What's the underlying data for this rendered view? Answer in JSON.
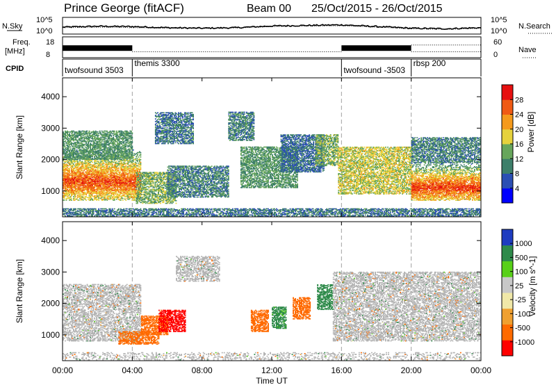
{
  "header": {
    "station": "Prince George (fitACF)",
    "beam": "Beam 00",
    "dates": "25/Oct/2015 - 26/Oct/2015"
  },
  "strips": {
    "nsky_label": "N.Sky",
    "nsky_ticks": [
      "10^5",
      "10^0"
    ],
    "nsearch_ticks": [
      "10^5",
      "10^0"
    ],
    "nsearch_label": "N.Search",
    "freq_label": [
      "Freq.",
      "[MHz]"
    ],
    "freq_ticks": [
      "18",
      "8"
    ],
    "nave_ticks": [
      "60",
      "0"
    ],
    "nave_label": "Nave",
    "cpid_label": "CPID",
    "cpid_programs": [
      {
        "name": "twofsound 3503",
        "start_hour": 0
      },
      {
        "name": "themis 3300",
        "start_hour": 4
      },
      {
        "name": "twofsound -3503",
        "start_hour": 16
      },
      {
        "name": "rbsp 200",
        "start_hour": 20
      }
    ]
  },
  "time_axis": {
    "label": "Time UT",
    "ticks": [
      "00:00",
      "04:00",
      "08:00",
      "12:00",
      "16:00",
      "20:00",
      "00:00"
    ]
  },
  "colors": {
    "power_scale": [
      "#0000ff",
      "#2b4fb4",
      "#3d7f6a",
      "#67a65c",
      "#e6d23c",
      "#f59a1c",
      "#f05a14",
      "#e61010"
    ],
    "velocity_scale": [
      "#ff0000",
      "#ff6a00",
      "#f0a030",
      "#f0e8a8",
      "#c8c8c8",
      "#58d018",
      "#2e8a4a",
      "#1e3cc0"
    ],
    "ground_scatter": "#b4b4b4",
    "divider": "#a0a0a0"
  },
  "chart_data": [
    {
      "type": "heatmap",
      "panel": "power",
      "title": "",
      "xlabel": "Time UT",
      "ylabel": "Slant Range [km]",
      "xlim": [
        0,
        24
      ],
      "ylim": [
        180,
        4600
      ],
      "yticks": [
        1000,
        2000,
        3000,
        4000
      ],
      "colorbar": {
        "label": "Power [dB]",
        "ticks": [
          "28",
          "24",
          "20",
          "16",
          "12",
          "8",
          "4"
        ],
        "range": [
          0,
          32
        ]
      },
      "regions": [
        {
          "t": [
            0,
            4.5
          ],
          "r": [
            700,
            2300
          ],
          "peak_r": 1300,
          "value": 27
        },
        {
          "t": [
            0,
            4.0
          ],
          "r": [
            2000,
            2900
          ],
          "value": 12
        },
        {
          "t": [
            4.2,
            6.5
          ],
          "r": [
            600,
            1600
          ],
          "value": 14
        },
        {
          "t": [
            5.3,
            7.5
          ],
          "r": [
            2500,
            3500
          ],
          "value": 9
        },
        {
          "t": [
            6.0,
            9.5
          ],
          "r": [
            800,
            1800
          ],
          "value": 10
        },
        {
          "t": [
            9.5,
            11.0
          ],
          "r": [
            2600,
            3500
          ],
          "value": 10
        },
        {
          "t": [
            10.2,
            13.5
          ],
          "r": [
            1100,
            2400
          ],
          "value": 12
        },
        {
          "t": [
            12.5,
            15.0
          ],
          "r": [
            1600,
            2800
          ],
          "value": 8
        },
        {
          "t": [
            14.5,
            15.8
          ],
          "r": [
            1800,
            2800
          ],
          "value": 14
        },
        {
          "t": [
            15.8,
            20.0
          ],
          "r": [
            900,
            2400
          ],
          "value": 17
        },
        {
          "t": [
            20.0,
            24.0
          ],
          "r": [
            700,
            1900
          ],
          "peak_r": 1100,
          "value": 28
        },
        {
          "t": [
            20.0,
            24.0
          ],
          "r": [
            1900,
            2700
          ],
          "value": 10
        },
        {
          "t": [
            0,
            24.0
          ],
          "r": [
            200,
            450
          ],
          "value": 9
        }
      ]
    },
    {
      "type": "heatmap",
      "panel": "velocity",
      "title": "",
      "xlabel": "Time UT",
      "ylabel": "Slant Range [km]",
      "xlim": [
        0,
        24
      ],
      "ylim": [
        180,
        4600
      ],
      "yticks": [
        1000,
        2000,
        3000,
        4000
      ],
      "colorbar": {
        "label": "Velocity [m s^-1]",
        "ticks": [
          "1000",
          "500",
          "100",
          "25",
          "-25",
          "-100",
          "-500",
          "-1000"
        ],
        "range": [
          -1000,
          1000
        ]
      },
      "regions": [
        {
          "t": [
            0,
            4.5
          ],
          "r": [
            800,
            2600
          ],
          "value": 0,
          "ground_scatter": true
        },
        {
          "t": [
            3.2,
            5.5
          ],
          "r": [
            700,
            1100
          ],
          "value": -150
        },
        {
          "t": [
            4.5,
            6.0
          ],
          "r": [
            1000,
            1600
          ],
          "value": -200
        },
        {
          "t": [
            5.5,
            7.0
          ],
          "r": [
            1100,
            1800
          ],
          "value": -800
        },
        {
          "t": [
            6.5,
            9.0
          ],
          "r": [
            2700,
            3500
          ],
          "value": 0,
          "ground_scatter": true
        },
        {
          "t": [
            10.8,
            11.8
          ],
          "r": [
            1100,
            1800
          ],
          "value": -300
        },
        {
          "t": [
            12.0,
            12.8
          ],
          "r": [
            1200,
            1900
          ],
          "value": 150
        },
        {
          "t": [
            13.2,
            14.2
          ],
          "r": [
            1500,
            2200
          ],
          "value": -200
        },
        {
          "t": [
            14.6,
            15.5
          ],
          "r": [
            1800,
            2600
          ],
          "value": 300
        },
        {
          "t": [
            15.5,
            24.0
          ],
          "r": [
            800,
            3000
          ],
          "value": 0,
          "ground_scatter": true
        },
        {
          "t": [
            0,
            24.0
          ],
          "r": [
            200,
            450
          ],
          "value": 0,
          "ground_scatter": true
        }
      ]
    },
    {
      "type": "line",
      "panel": "nsky_nsearch",
      "ylim_log": [
        0,
        5
      ],
      "series": [
        {
          "name": "N.Sky",
          "style": "solid",
          "x": [
            0,
            2,
            4,
            6,
            8,
            10,
            12,
            14,
            16,
            18,
            20,
            22,
            24
          ],
          "values": [
            2.0,
            2.3,
            2.2,
            1.8,
            1.6,
            1.8,
            2.4,
            2.6,
            2.8,
            2.2,
            1.6,
            1.4,
            1.8
          ]
        },
        {
          "name": "N.Search",
          "style": "dotted",
          "x": [
            0,
            2,
            4,
            6,
            8,
            10,
            12,
            14,
            16,
            18,
            20,
            22,
            24
          ],
          "values": [
            1.8,
            2.0,
            1.8,
            1.6,
            1.5,
            1.7,
            2.2,
            2.4,
            2.5,
            2.0,
            1.4,
            1.2,
            1.6
          ]
        }
      ]
    },
    {
      "type": "line",
      "panel": "freq_nave",
      "series": [
        {
          "name": "Freq.",
          "units": "MHz",
          "x": [
            0,
            4,
            4,
            16,
            16,
            20,
            20,
            24
          ],
          "values": [
            12.5,
            12.5,
            10.3,
            10.3,
            12.5,
            12.5,
            10.3,
            10.3
          ]
        },
        {
          "name": "Nave",
          "style": "dotted",
          "x": [
            0,
            4,
            4,
            16,
            16,
            20,
            20,
            24
          ],
          "values": [
            22,
            22,
            32,
            32,
            22,
            22,
            38,
            38
          ]
        }
      ]
    }
  ]
}
